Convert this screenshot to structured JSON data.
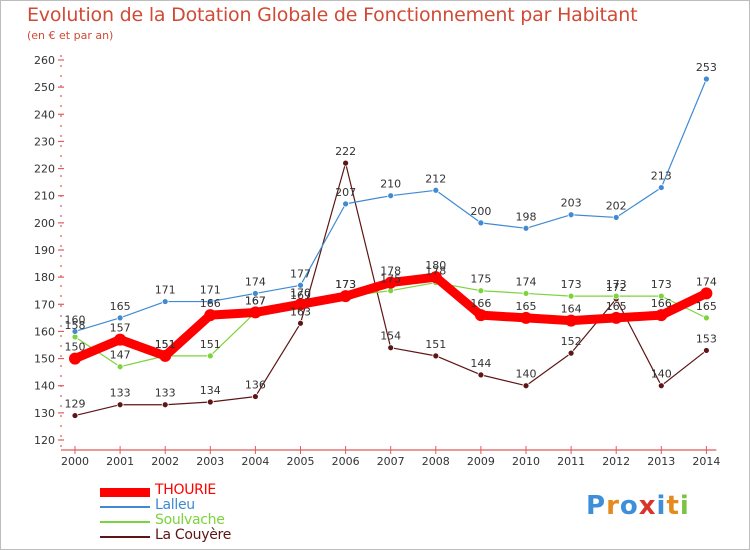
{
  "title": "Evolution de la Dotation Globale de Fonctionnement par Habitant",
  "subtitle": "(en € et par an)",
  "logo": {
    "text": "Proxiti",
    "letters": [
      "P",
      "r",
      "o",
      "x",
      "i",
      "t",
      "i"
    ],
    "colors": [
      "#3d8fd9",
      "#e58a1f",
      "#3d8fd9",
      "#d9342b",
      "#3d8fd9",
      "#e58a1f",
      "#7cc243"
    ]
  },
  "chart_data": {
    "type": "line",
    "x": [
      "2000",
      "2001",
      "2002",
      "2003",
      "2004",
      "2005",
      "2006",
      "2007",
      "2008",
      "2009",
      "2010",
      "2011",
      "2012",
      "2013",
      "2014"
    ],
    "ylim": [
      120,
      260
    ],
    "yticks": [
      120,
      130,
      140,
      150,
      160,
      170,
      180,
      190,
      200,
      210,
      220,
      230,
      240,
      250,
      260
    ],
    "grid": false,
    "legend_position": "bottom-left",
    "series": [
      {
        "name": "THOURIE",
        "color": "#ff0000",
        "values": [
          150,
          157,
          151,
          166,
          167,
          170,
          173,
          178,
          180,
          166,
          165,
          164,
          165,
          166,
          174
        ]
      },
      {
        "name": "Lalleu",
        "color": "#3f8ad2",
        "values": [
          160,
          165,
          171,
          171,
          174,
          177,
          207,
          210,
          212,
          200,
          198,
          203,
          202,
          213,
          253
        ]
      },
      {
        "name": "Soulvache",
        "color": "#7dd33b",
        "values": [
          158,
          147,
          151,
          151,
          167,
          169,
          173,
          175,
          178,
          175,
          174,
          173,
          173,
          173,
          165
        ]
      },
      {
        "name": "La Couyère",
        "color": "#5e1515",
        "values": [
          129,
          133,
          133,
          134,
          136,
          163,
          222,
          154,
          151,
          144,
          140,
          152,
          172,
          140,
          153
        ]
      }
    ]
  }
}
